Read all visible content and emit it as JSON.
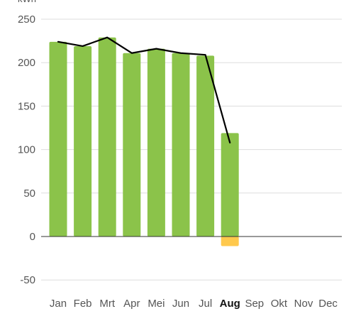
{
  "chart_data": {
    "type": "bar",
    "unit": "kWh",
    "categories": [
      "Jan",
      "Feb",
      "Mrt",
      "Apr",
      "Mei",
      "Jun",
      "Jul",
      "Aug",
      "Sep",
      "Okt",
      "Nov",
      "Dec"
    ],
    "active_category": "Aug",
    "yticks": [
      250,
      200,
      150,
      100,
      50,
      0,
      -50
    ],
    "ylim": [
      -55,
      255
    ],
    "grid": true,
    "series": [
      {
        "kind": "bar",
        "color": "#8bc34a",
        "values": [
          224,
          219,
          229,
          211,
          216,
          211,
          208,
          119,
          null,
          null,
          null,
          null
        ]
      },
      {
        "kind": "bar",
        "color": "#ffc94d",
        "values": [
          null,
          null,
          null,
          null,
          null,
          null,
          null,
          -11,
          null,
          null,
          null,
          null
        ]
      },
      {
        "kind": "line",
        "color": "#000000",
        "values": [
          224,
          219,
          229,
          211,
          216,
          211,
          209,
          108,
          null,
          null,
          null,
          null
        ]
      }
    ]
  }
}
